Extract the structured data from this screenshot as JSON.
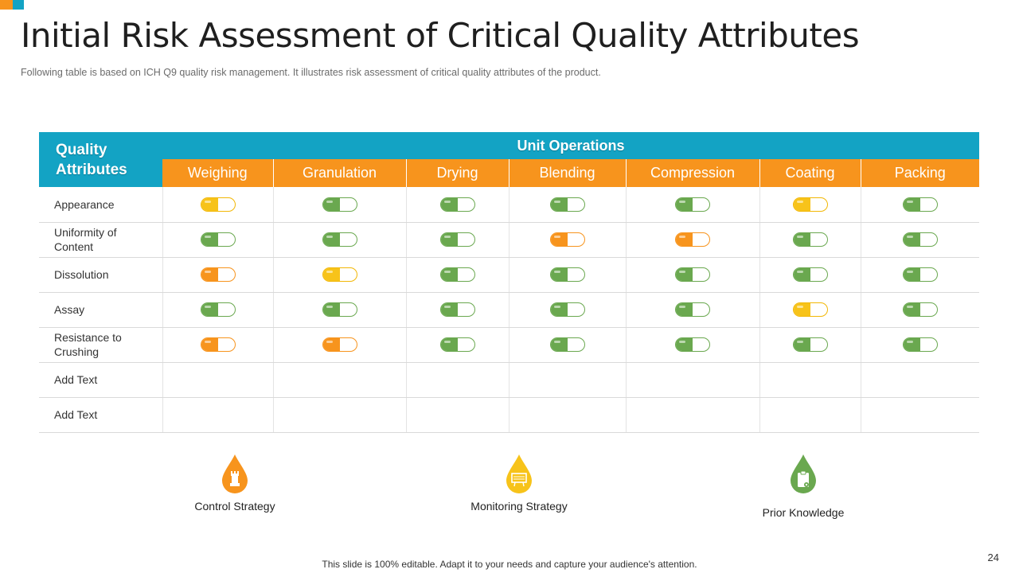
{
  "title": "Initial Risk Assessment of Critical Quality Attributes",
  "subtitle": "Following table is based on ICH  Q9 quality risk management. It illustrates risk assessment of critical quality attributes of the product.",
  "colors": {
    "green": "#6aa84f",
    "yellow": "#f7c31a",
    "orange": "#f7941d",
    "blue": "#13a3c4"
  },
  "table": {
    "attr_header": "Quality Attributes",
    "group_header": "Unit Operations",
    "operations": [
      "Weighing",
      "Granulation",
      "Drying",
      "Blending",
      "Compression",
      "Coating",
      "Packing"
    ],
    "rows": [
      {
        "label": "Appearance",
        "levels": [
          "yellow",
          "green",
          "green",
          "green",
          "green",
          "yellow",
          "green"
        ]
      },
      {
        "label": "Uniformity of Content",
        "levels": [
          "green",
          "green",
          "green",
          "orange",
          "orange",
          "green",
          "green"
        ]
      },
      {
        "label": "Dissolution",
        "levels": [
          "orange",
          "yellow",
          "green",
          "green",
          "green",
          "green",
          "green"
        ]
      },
      {
        "label": "Assay",
        "levels": [
          "green",
          "green",
          "green",
          "green",
          "green",
          "yellow",
          "green"
        ]
      },
      {
        "label": "Resistance to Crushing",
        "levels": [
          "orange",
          "orange",
          "green",
          "green",
          "green",
          "green",
          "green"
        ]
      },
      {
        "label": "Add Text",
        "levels": []
      },
      {
        "label": "Add Text",
        "levels": []
      }
    ]
  },
  "legend": [
    {
      "label": "Control Strategy",
      "color": "#f7941d",
      "icon": "rook-icon"
    },
    {
      "label": "Monitoring Strategy",
      "color": "#f7c31a",
      "icon": "monitor-icon"
    },
    {
      "label": "Prior Knowledge",
      "color": "#6aa84f",
      "icon": "clipboard-icon"
    }
  ],
  "footer": "This slide is 100% editable. Adapt it to your needs and capture your audience's attention.",
  "page_number": "24"
}
